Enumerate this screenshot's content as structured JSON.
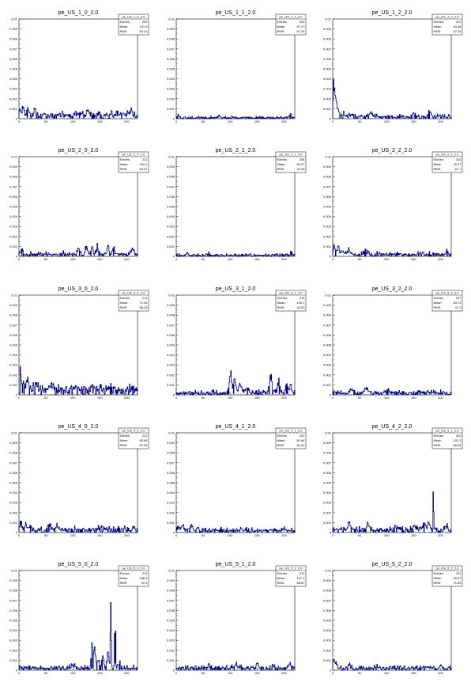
{
  "figure": {
    "panels_layout": "5 rows x 3 columns",
    "line_color": "#000080",
    "x_ticks": [
      0,
      50,
      100,
      150,
      200
    ],
    "y_ticks": [
      0,
      0.001,
      0.002,
      0.003,
      0.004,
      0.005,
      0.006,
      0.007,
      0.008,
      0.009,
      0.01
    ],
    "stats_labels": {
      "entries": "Entries",
      "mean": "Mean",
      "rms": "RMS"
    }
  },
  "chart_data": [
    {
      "type": "histogram",
      "title": "pe_US_1_0_2.0",
      "stats": {
        "name": "pe_US_1_0_2.0",
        "entries": "209",
        "mean": "121.9",
        "rms": "63.41"
      },
      "xlim": [
        0,
        220
      ],
      "ylim": [
        0,
        0.01
      ],
      "profile": {
        "baseline": 0.0004,
        "noise": 0.00035,
        "bumps": [
          [
            1,
            4,
            0.0006
          ],
          [
            8,
            3,
            0.0007
          ],
          [
            17,
            3,
            0.0008
          ],
          [
            30,
            3,
            0.0006
          ],
          [
            112,
            1,
            0.0012
          ],
          [
            128,
            3,
            0.0006
          ],
          [
            150,
            3,
            0.0006
          ],
          [
            208,
            3,
            0.0007
          ]
        ]
      }
    },
    {
      "type": "histogram",
      "title": "pe_US_1_1_2.0",
      "stats": {
        "name": "pe_US_1_1_2.0",
        "entries": "209",
        "mean": "67.27",
        "rms": "67.36"
      },
      "xlim": [
        0,
        220
      ],
      "ylim": [
        0,
        0.01
      ],
      "profile": {
        "baseline": 0.0001,
        "noise": 0.00015,
        "bumps": [
          [
            3,
            2,
            0.0003
          ],
          [
            80,
            3,
            0.0002
          ],
          [
            212,
            3,
            0.0004
          ]
        ]
      }
    },
    {
      "type": "histogram",
      "title": "pe_US_1_2_2.0",
      "stats": {
        "name": "pe_US_1_2_2.0",
        "entries": "212",
        "mean": "63.46",
        "rms": "57.34"
      },
      "xlim": [
        0,
        220
      ],
      "ylim": [
        0,
        0.01
      ],
      "profile": {
        "baseline": 0.0002,
        "noise": 0.00025,
        "bumps": [
          [
            1,
            1,
            0.0046
          ],
          [
            3,
            2,
            0.0026
          ],
          [
            6,
            2,
            0.0015
          ],
          [
            10,
            3,
            0.0008
          ],
          [
            18,
            3,
            0.0006
          ],
          [
            35,
            4,
            0.0004
          ],
          [
            70,
            4,
            0.0005
          ],
          [
            150,
            3,
            0.0005
          ],
          [
            180,
            3,
            0.0005
          ]
        ]
      }
    },
    {
      "type": "histogram",
      "title": "pe_US_2_0_2.0",
      "stats": {
        "name": "pe_US_2_0_2.0",
        "entries": "213",
        "mean": "134.1",
        "rms": "63.27"
      },
      "xlim": [
        0,
        220
      ],
      "ylim": [
        0,
        0.01
      ],
      "profile": {
        "baseline": 0.0002,
        "noise": 0.0003,
        "bumps": [
          [
            5,
            3,
            0.0006
          ],
          [
            110,
            4,
            0.0006
          ],
          [
            125,
            3,
            0.0008
          ],
          [
            135,
            2,
            0.0013
          ],
          [
            145,
            3,
            0.0008
          ],
          [
            165,
            3,
            0.0009
          ],
          [
            175,
            3,
            0.0008
          ],
          [
            210,
            3,
            0.0007
          ]
        ]
      }
    },
    {
      "type": "histogram",
      "title": "pe_US_2_1_2.0",
      "stats": {
        "name": "pe_US_2_1_2.0",
        "entries": "206",
        "mean": "64.47",
        "rms": "44.49"
      },
      "xlim": [
        0,
        220
      ],
      "ylim": [
        0,
        0.01
      ],
      "profile": {
        "baseline": 0.0001,
        "noise": 0.00018,
        "bumps": [
          [
            20,
            3,
            0.0003
          ],
          [
            60,
            4,
            0.0002
          ],
          [
            213,
            2,
            0.0005
          ]
        ]
      }
    },
    {
      "type": "histogram",
      "title": "pe_US_2_2_2.0",
      "stats": {
        "name": "pe_US_2_2_2.0",
        "entries": "210",
        "mean": "76.27",
        "rms": "67.7"
      },
      "xlim": [
        0,
        220
      ],
      "ylim": [
        0,
        0.01
      ],
      "profile": {
        "baseline": 0.0002,
        "noise": 0.0003,
        "bumps": [
          [
            3,
            3,
            0.0008
          ],
          [
            10,
            3,
            0.0009
          ],
          [
            18,
            3,
            0.0006
          ],
          [
            30,
            4,
            0.0005
          ],
          [
            60,
            4,
            0.0003
          ],
          [
            212,
            2,
            0.0005
          ]
        ]
      }
    },
    {
      "type": "histogram",
      "title": "pe_US_3_0_2.0",
      "stats": {
        "name": "pe_US_3_0_2.0",
        "entries": "211",
        "mean": "71.34",
        "rms": "58.15"
      },
      "xlim": [
        0,
        220
      ],
      "ylim": [
        0,
        0.01
      ],
      "profile": {
        "baseline": 0.0006,
        "noise": 0.0004,
        "bumps": [
          [
            2,
            2,
            0.0018
          ],
          [
            6,
            3,
            0.0012
          ],
          [
            15,
            4,
            0.0008
          ],
          [
            30,
            5,
            0.0007
          ],
          [
            60,
            4,
            0.0005
          ],
          [
            100,
            6,
            0.0003
          ],
          [
            150,
            6,
            0.0002
          ]
        ]
      }
    },
    {
      "type": "histogram",
      "title": "pe_US_3_1_2.0",
      "stats": {
        "name": "pe_US_3_1_2.0",
        "entries": "214",
        "mean": "140.2",
        "rms": "43.53"
      },
      "xlim": [
        0,
        220
      ],
      "ylim": [
        0,
        0.01
      ],
      "profile": {
        "baseline": 0.0002,
        "noise": 0.0003,
        "bumps": [
          [
            100,
            3,
            0.0024
          ],
          [
            108,
            3,
            0.0016
          ],
          [
            118,
            4,
            0.001
          ],
          [
            130,
            4,
            0.0006
          ],
          [
            175,
            4,
            0.0018
          ],
          [
            190,
            3,
            0.0014
          ],
          [
            205,
            3,
            0.0012
          ],
          [
            212,
            2,
            0.001
          ]
        ]
      }
    },
    {
      "type": "histogram",
      "title": "pe_US_3_2_2.0",
      "stats": {
        "name": "pe_US_3_2_2.0",
        "entries": "207",
        "mean": "83.72",
        "rms": "47.3"
      },
      "xlim": [
        0,
        220
      ],
      "ylim": [
        0,
        0.01
      ],
      "profile": {
        "baseline": 0.0002,
        "noise": 0.00025,
        "bumps": [
          [
            35,
            4,
            0.0004
          ],
          [
            62,
            5,
            0.0006
          ],
          [
            100,
            6,
            0.0003
          ],
          [
            160,
            5,
            0.0002
          ]
        ]
      }
    },
    {
      "type": "histogram",
      "title": "pe_US_4_0_2.0",
      "stats": {
        "name": "pe_US_4_0_2.0",
        "entries": "212",
        "mean": "63.69",
        "rms": "57.29"
      },
      "xlim": [
        0,
        220
      ],
      "ylim": [
        0,
        0.01
      ],
      "profile": {
        "baseline": 0.0003,
        "noise": 0.0003,
        "bumps": [
          [
            3,
            2,
            0.001
          ],
          [
            12,
            3,
            0.0007
          ],
          [
            20,
            3,
            0.0006
          ],
          [
            55,
            4,
            0.0007
          ],
          [
            70,
            3,
            0.0004
          ],
          [
            150,
            3,
            0.0004
          ],
          [
            212,
            2,
            0.0003
          ]
        ]
      }
    },
    {
      "type": "histogram",
      "title": "pe_US_4_1_2.0",
      "stats": {
        "name": "pe_US_4_1_2.0",
        "entries": "201",
        "mean": "61.66",
        "rms": "64.41"
      },
      "xlim": [
        0,
        220
      ],
      "ylim": [
        0,
        0.01
      ],
      "profile": {
        "baseline": 0.0002,
        "noise": 0.0003,
        "bumps": [
          [
            5,
            3,
            0.0004
          ],
          [
            12,
            3,
            0.0006
          ],
          [
            28,
            3,
            0.0006
          ],
          [
            40,
            3,
            0.0004
          ],
          [
            70,
            4,
            0.0002
          ],
          [
            200,
            3,
            0.0002
          ]
        ]
      }
    },
    {
      "type": "histogram",
      "title": "pe_US_4_2_2.0",
      "stats": {
        "name": "pe_US_4_2_2.0",
        "entries": "203",
        "mean": "121.3",
        "rms": "58.26"
      },
      "xlim": [
        0,
        220
      ],
      "ylim": [
        0,
        0.01
      ],
      "profile": {
        "baseline": 0.0003,
        "noise": 0.0003,
        "bumps": [
          [
            186,
            1,
            0.005
          ],
          [
            178,
            3,
            0.0008
          ],
          [
            170,
            3,
            0.0006
          ],
          [
            30,
            3,
            0.0008
          ],
          [
            65,
            3,
            0.0005
          ],
          [
            120,
            4,
            0.0004
          ],
          [
            150,
            4,
            0.0004
          ],
          [
            210,
            3,
            0.0005
          ]
        ]
      }
    },
    {
      "type": "histogram",
      "title": "pe_US_5_0_2.0",
      "stats": {
        "name": "pe_US_5_0_2.0",
        "entries": "213",
        "mean": "166.5",
        "rms": "31.4"
      },
      "xlim": [
        0,
        220
      ],
      "ylim": [
        0,
        0.01
      ],
      "profile": {
        "baseline": 0.0002,
        "noise": 0.0003,
        "bumps": [
          [
            135,
            2,
            0.0034
          ],
          [
            140,
            3,
            0.002
          ],
          [
            147,
            2,
            0.0012
          ],
          [
            155,
            3,
            0.0012
          ],
          [
            170,
            1,
            0.01
          ],
          [
            178,
            1,
            0.01
          ],
          [
            165,
            3,
            0.0018
          ],
          [
            185,
            3,
            0.0006
          ],
          [
            100,
            5,
            0.0003
          ]
        ]
      }
    },
    {
      "type": "histogram",
      "title": "pe_US_5_1_2.0",
      "stats": {
        "name": "pe_US_5_1_2.0",
        "entries": "212",
        "mean": "127.1",
        "rms": "68.87"
      },
      "xlim": [
        0,
        220
      ],
      "ylim": [
        0,
        0.01
      ],
      "profile": {
        "baseline": 0.0002,
        "noise": 0.00028,
        "bumps": [
          [
            15,
            3,
            0.0003
          ],
          [
            60,
            4,
            0.0003
          ],
          [
            110,
            4,
            0.0004
          ],
          [
            150,
            2,
            0.001
          ],
          [
            178,
            3,
            0.0004
          ],
          [
            210,
            3,
            0.0006
          ]
        ]
      }
    },
    {
      "type": "histogram",
      "title": "pe_US_5_2_2.0",
      "stats": {
        "name": "pe_US_5_2_2.0",
        "entries": "211",
        "mean": "69.97",
        "rms": "71.59"
      },
      "xlim": [
        0,
        220
      ],
      "ylim": [
        0,
        0.01
      ],
      "profile": {
        "baseline": 0.0002,
        "noise": 0.00025,
        "bumps": [
          [
            1,
            2,
            0.001
          ],
          [
            5,
            3,
            0.0006
          ],
          [
            30,
            4,
            0.0004
          ],
          [
            80,
            4,
            0.0003
          ],
          [
            200,
            3,
            0.0004
          ]
        ]
      }
    }
  ]
}
